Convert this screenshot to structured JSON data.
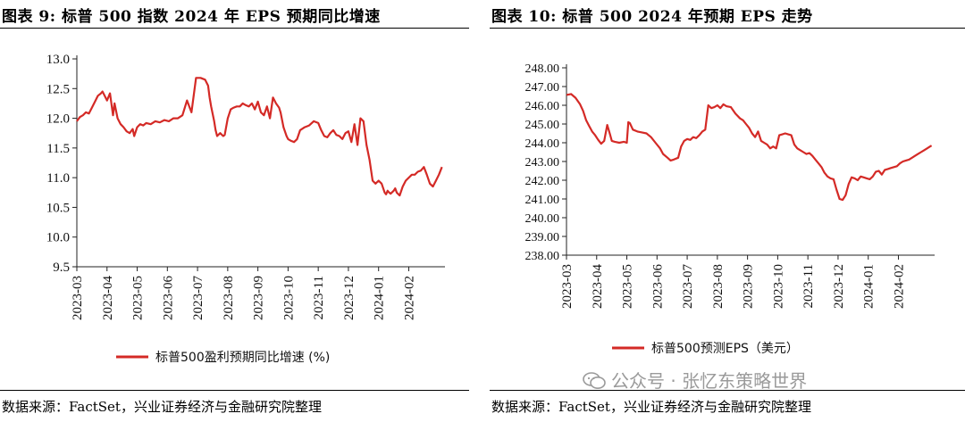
{
  "left": {
    "title": "图表 9:  标普 500 指数 2024 年 EPS 预期同比增速",
    "source": "数据来源：FactSet，兴业证券经济与金融研究院整理",
    "chart_data": {
      "type": "line",
      "title": "标普500指数2024年EPS预期同比增速",
      "ylim": [
        9.5,
        13.0
      ],
      "yticks": [
        "13.0",
        "12.5",
        "12.0",
        "11.5",
        "11.0",
        "10.5",
        "10.0",
        "9.5"
      ],
      "ytick_values": [
        13.0,
        12.5,
        12.0,
        11.5,
        11.0,
        10.5,
        10.0,
        9.5
      ],
      "xticks": [
        "2023-03",
        "2023-04",
        "2023-05",
        "2023-06",
        "2023-07",
        "2023-08",
        "2023-09",
        "2023-10",
        "2023-11",
        "2023-12",
        "2024-01",
        "2024-02"
      ],
      "x_range": [
        0,
        12.2
      ],
      "legend": "标普500盈利预期同比增速 (%)",
      "legend_position": "bottom",
      "color": "#d42a26",
      "series": [
        {
          "name": "标普500盈利预期同比增速 (%)",
          "x": [
            0.0,
            0.1,
            0.2,
            0.3,
            0.4,
            0.5,
            0.6,
            0.7,
            0.8,
            0.85,
            0.9,
            1.0,
            1.1,
            1.2,
            1.25,
            1.35,
            1.45,
            1.55,
            1.65,
            1.75,
            1.85,
            1.9,
            2.0,
            2.1,
            2.2,
            2.3,
            2.45,
            2.6,
            2.75,
            2.9,
            3.05,
            3.2,
            3.35,
            3.5,
            3.65,
            3.8,
            3.95,
            4.1,
            4.25,
            4.35,
            4.4,
            4.45,
            4.55,
            4.6,
            4.65,
            4.75,
            4.85,
            4.9,
            5.0,
            5.1,
            5.2,
            5.3,
            5.4,
            5.5,
            5.6,
            5.7,
            5.8,
            5.9,
            6.0,
            6.1,
            6.2,
            6.3,
            6.4,
            6.5,
            6.6,
            6.7,
            6.75,
            6.85,
            6.95,
            7.0,
            7.1,
            7.2,
            7.3,
            7.4,
            7.55,
            7.7,
            7.85,
            8.0,
            8.1,
            8.2,
            8.3,
            8.4,
            8.5,
            8.6,
            8.7,
            8.8,
            8.9,
            9.0,
            9.1,
            9.2,
            9.3,
            9.4,
            9.5,
            9.6,
            9.7,
            9.8,
            9.9,
            10.0,
            10.1,
            10.2,
            10.25,
            10.3,
            10.35,
            10.4,
            10.5,
            10.55,
            10.6,
            10.7,
            10.8,
            10.9,
            11.0,
            11.1,
            11.2,
            11.3,
            11.4,
            11.5,
            11.6,
            11.7,
            11.8,
            11.9,
            12.0,
            12.1
          ],
          "values": [
            11.95,
            12.02,
            12.05,
            12.1,
            12.08,
            12.18,
            12.28,
            12.38,
            12.42,
            12.45,
            12.4,
            12.3,
            12.42,
            12.05,
            12.25,
            12.0,
            11.9,
            11.85,
            11.78,
            11.75,
            11.82,
            11.7,
            11.85,
            11.9,
            11.88,
            11.92,
            11.9,
            11.95,
            11.93,
            11.97,
            11.95,
            12.0,
            12.0,
            12.05,
            12.3,
            12.1,
            12.68,
            12.68,
            12.65,
            12.55,
            12.35,
            12.2,
            11.95,
            11.8,
            11.7,
            11.75,
            11.7,
            11.72,
            12.0,
            12.15,
            12.18,
            12.2,
            12.2,
            12.25,
            12.22,
            12.2,
            12.25,
            12.15,
            12.28,
            12.1,
            12.05,
            12.2,
            12.0,
            12.35,
            12.25,
            12.18,
            12.1,
            11.85,
            11.7,
            11.65,
            11.62,
            11.6,
            11.65,
            11.8,
            11.85,
            11.88,
            11.95,
            11.92,
            11.8,
            11.7,
            11.68,
            11.75,
            11.8,
            11.72,
            11.7,
            11.65,
            11.75,
            11.78,
            11.6,
            11.9,
            11.55,
            12.0,
            11.95,
            11.55,
            11.3,
            10.95,
            10.9,
            10.95,
            10.9,
            10.75,
            10.72,
            10.78,
            10.75,
            10.73,
            10.78,
            10.82,
            10.75,
            10.7,
            10.85,
            10.95,
            11.0,
            11.05,
            11.05,
            11.1,
            11.12,
            11.18,
            11.05,
            10.9,
            10.85,
            10.95,
            11.05,
            11.18
          ],
          "note": "trimmed series"
        }
      ]
    }
  },
  "right": {
    "title": "图表 10:  标普 500 2024 年预期 EPS 走势",
    "source": "数据来源：FactSet，兴业证券经济与金融研究院整理",
    "watermark": "公众号 · 张忆东策略世界",
    "chart_data": {
      "type": "line",
      "title": "标普500 2024年预期EPS走势",
      "ylim": [
        238.0,
        248.0
      ],
      "yticks": [
        "248.00",
        "247.00",
        "246.00",
        "245.00",
        "244.00",
        "243.00",
        "242.00",
        "241.00",
        "240.00",
        "239.00",
        "238.00"
      ],
      "ytick_values": [
        248,
        247,
        246,
        245,
        244,
        243,
        242,
        241,
        240,
        239,
        238
      ],
      "xticks": [
        "2023-03",
        "2023-04",
        "2023-05",
        "2023-06",
        "2023-07",
        "2023-08",
        "2023-09",
        "2023-10",
        "2023-11",
        "2023-12",
        "2024-01",
        "2024-02"
      ],
      "x_range": [
        0,
        12.2
      ],
      "legend": "标普500预测EPS（美元）",
      "legend_position": "bottom",
      "color": "#d42a26",
      "series": [
        {
          "name": "标普500预测EPS（美元）",
          "x": [
            0.0,
            0.15,
            0.3,
            0.45,
            0.55,
            0.65,
            0.75,
            0.85,
            0.95,
            1.05,
            1.15,
            1.25,
            1.35,
            1.45,
            1.5,
            1.6,
            1.75,
            1.9,
            2.0,
            2.05,
            2.1,
            2.2,
            2.35,
            2.5,
            2.65,
            2.8,
            2.95,
            3.1,
            3.2,
            3.35,
            3.45,
            3.55,
            3.7,
            3.8,
            3.9,
            4.0,
            4.1,
            4.2,
            4.3,
            4.4,
            4.5,
            4.6,
            4.7,
            4.8,
            4.9,
            5.0,
            5.1,
            5.2,
            5.25,
            5.3,
            5.45,
            5.6,
            5.75,
            5.85,
            5.95,
            6.05,
            6.15,
            6.25,
            6.35,
            6.45,
            6.55,
            6.65,
            6.75,
            6.85,
            6.95,
            7.05,
            7.15,
            7.25,
            7.35,
            7.45,
            7.55,
            7.65,
            7.75,
            7.85,
            7.95,
            8.05,
            8.15,
            8.25,
            8.35,
            8.45,
            8.55,
            8.65,
            8.75,
            8.85,
            8.95,
            9.05,
            9.15,
            9.25,
            9.35,
            9.45,
            9.55,
            9.65,
            9.75,
            9.85,
            9.95,
            10.05,
            10.15,
            10.25,
            10.35,
            10.45,
            10.55,
            10.65,
            10.75,
            10.85,
            10.95,
            11.05,
            11.15,
            11.25,
            11.35,
            11.45,
            11.55,
            11.65,
            11.75,
            11.85,
            11.95,
            12.05,
            12.1
          ],
          "values": [
            246.55,
            246.6,
            246.4,
            246.05,
            245.7,
            245.2,
            244.9,
            244.6,
            244.4,
            244.15,
            243.95,
            244.1,
            244.95,
            244.4,
            244.1,
            244.05,
            244.0,
            244.05,
            244.0,
            245.1,
            245.05,
            244.7,
            244.6,
            244.55,
            244.5,
            244.3,
            244.0,
            243.7,
            243.4,
            243.2,
            243.05,
            243.1,
            243.2,
            243.8,
            244.1,
            244.2,
            244.15,
            244.3,
            244.25,
            244.4,
            244.6,
            244.7,
            246.0,
            245.85,
            245.9,
            246.0,
            245.85,
            246.05,
            246.0,
            245.95,
            245.9,
            245.55,
            245.3,
            245.2,
            245.0,
            244.8,
            244.5,
            244.3,
            244.6,
            244.1,
            244.0,
            243.9,
            243.7,
            243.8,
            243.7,
            244.4,
            244.45,
            244.5,
            244.45,
            244.4,
            243.9,
            243.7,
            243.6,
            243.5,
            243.4,
            243.45,
            243.3,
            243.1,
            242.9,
            242.7,
            242.4,
            242.2,
            242.1,
            242.05,
            241.5,
            241.0,
            240.95,
            241.2,
            241.8,
            242.15,
            242.1,
            242.0,
            242.2,
            242.15,
            242.1,
            242.05,
            242.2,
            242.45,
            242.5,
            242.3,
            242.55,
            242.6,
            242.65,
            242.7,
            242.75,
            242.9,
            243.0,
            243.05,
            243.1,
            243.2,
            243.3,
            243.4,
            243.5,
            243.6,
            243.7,
            243.8,
            243.85
          ],
          "note": "trimmed series"
        }
      ]
    }
  }
}
